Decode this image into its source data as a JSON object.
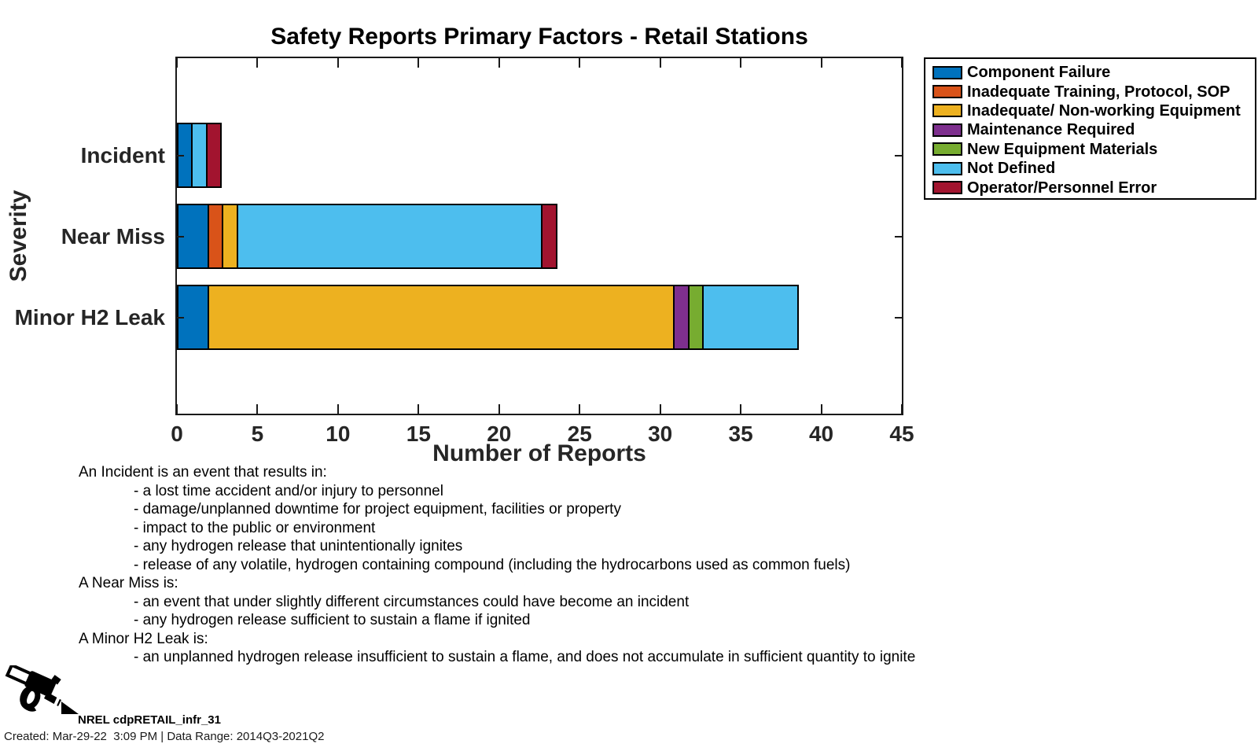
{
  "chart_data": {
    "type": "bar",
    "orientation": "horizontal-stacked",
    "title": "Safety Reports Primary Factors - Retail Stations",
    "xlabel": "Number of Reports",
    "ylabel": "Severity",
    "xlim": [
      0,
      45
    ],
    "xticks": [
      0,
      5,
      10,
      15,
      20,
      25,
      30,
      35,
      40,
      45
    ],
    "grid": false,
    "legend_position": "outside-top-right",
    "categories": [
      "Incident",
      "Near Miss",
      "Minor H2 Leak"
    ],
    "series": [
      {
        "name": "Component Failure",
        "color": "#0072BD",
        "values": [
          1,
          2,
          2
        ]
      },
      {
        "name": "Inadequate Training, Protocol, SOP",
        "color": "#D95319",
        "values": [
          0,
          1,
          0
        ]
      },
      {
        "name": "Inadequate/ Non-working Equipment",
        "color": "#EDB120",
        "values": [
          0,
          1,
          29
        ]
      },
      {
        "name": "Maintenance Required",
        "color": "#7E2F8E",
        "values": [
          0,
          0,
          1
        ]
      },
      {
        "name": "New Equipment Materials",
        "color": "#77AC30",
        "values": [
          0,
          0,
          1
        ]
      },
      {
        "name": "Not Defined",
        "color": "#4DBEEE",
        "values": [
          1,
          19,
          6
        ]
      },
      {
        "name": "Operator/Personnel Error",
        "color": "#A2142F",
        "values": [
          1,
          1,
          0
        ]
      }
    ],
    "category_totals": [
      3,
      24,
      39
    ]
  },
  "footnotes": {
    "lines": [
      {
        "text": "An Incident is an event that results in:",
        "indent": 0
      },
      {
        "text": "- a lost time accident and/or injury to personnel",
        "indent": 1
      },
      {
        "text": "- damage/unplanned downtime for project equipment, facilities or property",
        "indent": 1
      },
      {
        "text": "- impact to the public or environment",
        "indent": 1
      },
      {
        "text": "- any hydrogen release that unintentionally ignites",
        "indent": 1
      },
      {
        "text": "- release of any volatile, hydrogen containing compound (including the hydrocarbons used as common fuels)",
        "indent": 1
      },
      {
        "text": "A Near Miss is:",
        "indent": 0
      },
      {
        "text": "- an event that under slightly different circumstances could have become an incident",
        "indent": 1
      },
      {
        "text": "- any hydrogen release sufficient to sustain a flame if ignited",
        "indent": 1
      },
      {
        "text": "A Minor H2 Leak is:",
        "indent": 0
      },
      {
        "text": "- an unplanned hydrogen release insufficient to sustain a flame, and does not accumulate in sufficient quantity to ignite",
        "indent": 1
      }
    ]
  },
  "footer": {
    "brand": "NREL cdpRETAIL_infr_31",
    "created": "Created: Mar-29-22  3:09 PM | Data Range: 2014Q3-2021Q2",
    "icon": "fuel-nozzle-icon"
  },
  "colors": {
    "axis": "#262626",
    "frame": "#1a1a1a",
    "background": "#ffffff"
  }
}
